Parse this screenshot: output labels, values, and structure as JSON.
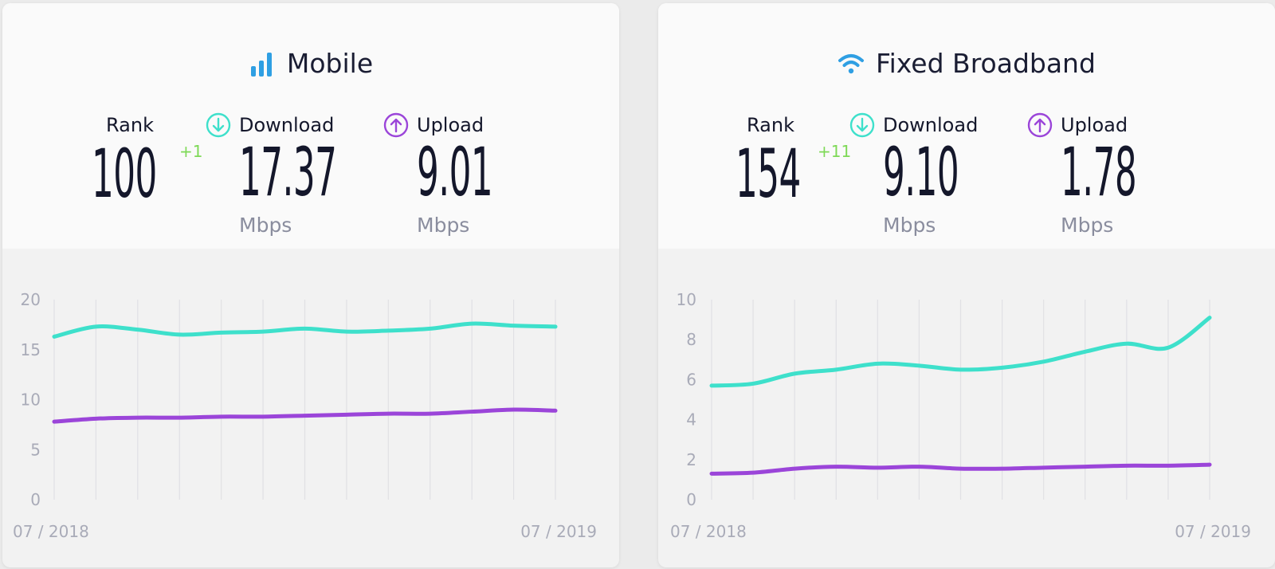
{
  "cards": {
    "mobile": {
      "title": "Mobile",
      "rank_label": "Rank",
      "rank": "100",
      "rank_change": "+1",
      "download_label": "Download",
      "download": "17.37",
      "download_unit": "Mbps",
      "upload_label": "Upload",
      "upload": "9.01",
      "upload_unit": "Mbps",
      "icon": "signal-bars-icon"
    },
    "fixed": {
      "title": "Fixed Broadband",
      "rank_label": "Rank",
      "rank": "154",
      "rank_change": "+11",
      "download_label": "Download",
      "download": "9.10",
      "download_unit": "Mbps",
      "upload_label": "Upload",
      "upload": "1.78",
      "upload_unit": "Mbps",
      "icon": "wifi-icon"
    }
  },
  "colors": {
    "download": "#3ee0cb",
    "upload": "#9b45d9",
    "title_icon": "#2f9fe3",
    "rank_change": "#7ed957"
  },
  "chart_data": [
    {
      "type": "line",
      "x_start_label": "07 / 2018",
      "x_end_label": "07 / 2019",
      "x": [
        "07/2018",
        "08/2018",
        "09/2018",
        "10/2018",
        "11/2018",
        "12/2018",
        "01/2019",
        "02/2019",
        "03/2019",
        "04/2019",
        "05/2019",
        "06/2019",
        "07/2019"
      ],
      "ylim": [
        0,
        20
      ],
      "yticks": [
        0,
        5,
        10,
        15,
        20
      ],
      "series": [
        {
          "name": "Download",
          "values": [
            16.3,
            17.3,
            17.0,
            16.5,
            16.7,
            16.8,
            17.1,
            16.8,
            16.9,
            17.1,
            17.6,
            17.4,
            17.3
          ]
        },
        {
          "name": "Upload",
          "values": [
            7.8,
            8.1,
            8.2,
            8.2,
            8.3,
            8.3,
            8.4,
            8.5,
            8.6,
            8.6,
            8.8,
            9.0,
            8.9
          ]
        }
      ]
    },
    {
      "type": "line",
      "x_start_label": "07 / 2018",
      "x_end_label": "07 / 2019",
      "x": [
        "07/2018",
        "08/2018",
        "09/2018",
        "10/2018",
        "11/2018",
        "12/2018",
        "01/2019",
        "02/2019",
        "03/2019",
        "04/2019",
        "05/2019",
        "06/2019",
        "07/2019"
      ],
      "ylim": [
        0,
        10
      ],
      "yticks": [
        0,
        2,
        4,
        6,
        8,
        10
      ],
      "series": [
        {
          "name": "Download",
          "values": [
            5.7,
            5.8,
            6.3,
            6.5,
            6.8,
            6.7,
            6.5,
            6.6,
            6.9,
            7.4,
            7.8,
            7.6,
            9.1
          ]
        },
        {
          "name": "Upload",
          "values": [
            1.3,
            1.35,
            1.55,
            1.65,
            1.6,
            1.65,
            1.55,
            1.55,
            1.6,
            1.65,
            1.7,
            1.7,
            1.75
          ]
        }
      ]
    }
  ]
}
